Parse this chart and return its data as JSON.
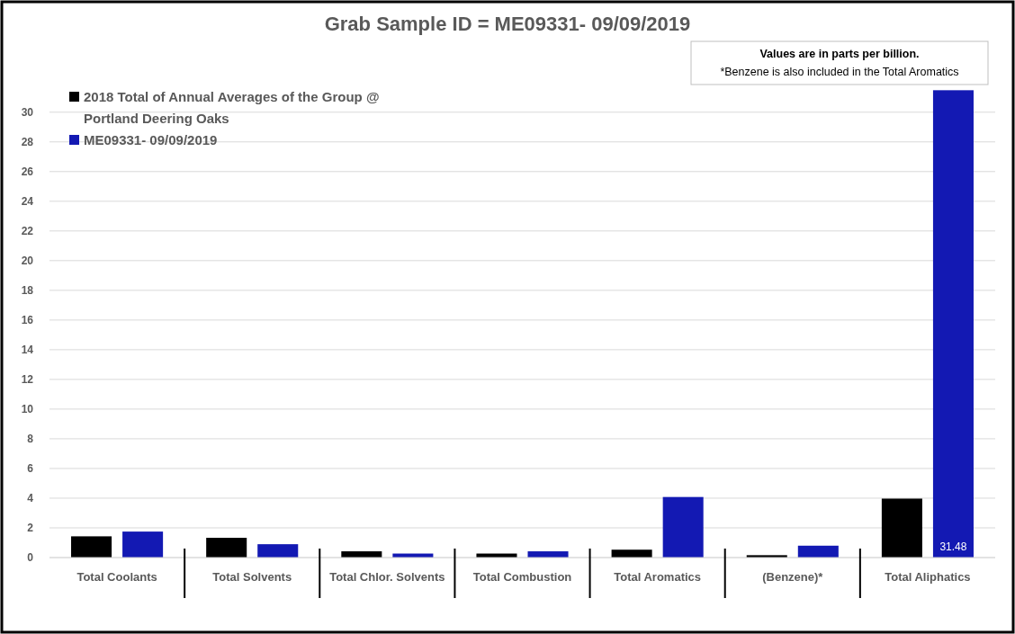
{
  "chart_data": {
    "type": "bar",
    "title": "Grab Sample ID = ME09331- 09/09/2019",
    "categories": [
      "Total Coolants",
      "Total Solvents",
      "Total Chlor. Solvents",
      "Total Combustion",
      "Total Aromatics",
      "(Benzene)*",
      "Total Aliphatics"
    ],
    "series": [
      {
        "name": "2018 Total of Annual Averages of the Group @ Portland Deering Oaks",
        "color": "#000000",
        "values": [
          1.43,
          1.33,
          0.42,
          0.27,
          0.53,
          0.16,
          3.97
        ]
      },
      {
        "name": "ME09331- 09/09/2019",
        "color": "#1319b3",
        "values": [
          1.75,
          0.9,
          0.27,
          0.42,
          4.08,
          0.8,
          31.48
        ],
        "value_labels": [
          null,
          null,
          null,
          null,
          null,
          null,
          "31.48"
        ]
      }
    ],
    "ylim": [
      0,
      31.5
    ],
    "yticks": [
      0,
      2,
      4,
      6,
      8,
      10,
      12,
      14,
      16,
      18,
      20,
      22,
      24,
      26,
      28,
      30
    ],
    "grid": "y",
    "legend": "top left",
    "annotations": [
      "Values are in parts per billion.",
      "*Benzene is also included in the Total Aromatics"
    ]
  }
}
